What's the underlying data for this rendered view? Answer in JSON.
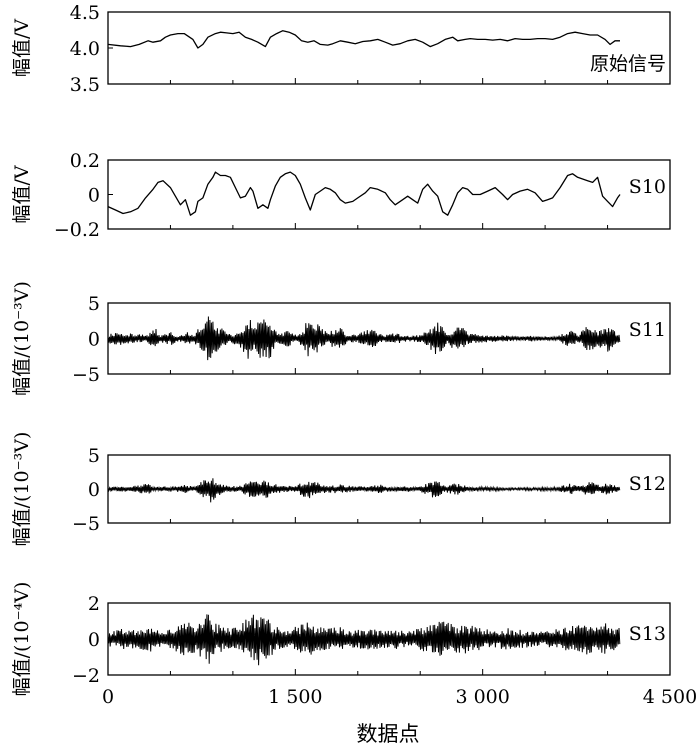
{
  "chart_data": [
    {
      "type": "line",
      "ylabel": "幅值/V",
      "label": "原始信号",
      "ylim": [
        3.5,
        4.5
      ],
      "yticks": [
        "4.5",
        "4.0",
        "3.5"
      ],
      "ytick_values": [
        4.5,
        4.0,
        3.5
      ],
      "xlim": [
        0,
        4500
      ],
      "grid": false,
      "series": [
        {
          "x": [
            0,
            100,
            180,
            250,
            320,
            360,
            420,
            460,
            500,
            560,
            610,
            680,
            720,
            760,
            800,
            860,
            900,
            950,
            1000,
            1050,
            1100,
            1150,
            1200,
            1260,
            1300,
            1350,
            1400,
            1450,
            1500,
            1550,
            1600,
            1650,
            1700,
            1760,
            1800,
            1860,
            1920,
            1980,
            2040,
            2100,
            2160,
            2220,
            2280,
            2340,
            2400,
            2460,
            2520,
            2580,
            2640,
            2700,
            2760,
            2800,
            2860,
            2900,
            2960,
            3020,
            3080,
            3140,
            3200,
            3260,
            3320,
            3380,
            3440,
            3500,
            3560,
            3620,
            3680,
            3740,
            3800,
            3860,
            3920,
            3980,
            4020,
            4060,
            4100
          ],
          "y": [
            4.05,
            4.03,
            4.02,
            4.05,
            4.1,
            4.08,
            4.1,
            4.15,
            4.18,
            4.2,
            4.2,
            4.12,
            4.0,
            4.05,
            4.15,
            4.2,
            4.22,
            4.21,
            4.2,
            4.22,
            4.15,
            4.12,
            4.08,
            4.02,
            4.15,
            4.2,
            4.24,
            4.22,
            4.18,
            4.1,
            4.08,
            4.1,
            4.05,
            4.04,
            4.06,
            4.1,
            4.08,
            4.06,
            4.09,
            4.1,
            4.12,
            4.08,
            4.04,
            4.06,
            4.1,
            4.12,
            4.08,
            4.02,
            4.06,
            4.12,
            4.15,
            4.1,
            4.12,
            4.13,
            4.12,
            4.12,
            4.11,
            4.12,
            4.1,
            4.13,
            4.12,
            4.12,
            4.13,
            4.13,
            4.12,
            4.15,
            4.2,
            4.22,
            4.2,
            4.18,
            4.18,
            4.12,
            4.05,
            4.1,
            4.1
          ]
        }
      ]
    },
    {
      "type": "line",
      "ylabel": "幅值/V",
      "label": "S10",
      "ylim": [
        -0.2,
        0.2
      ],
      "yticks": [
        "0.2",
        "0",
        "−0.2"
      ],
      "ytick_values": [
        0.2,
        0,
        -0.2
      ],
      "xlim": [
        0,
        4500
      ],
      "grid": false,
      "series": [
        {
          "x": [
            0,
            60,
            120,
            180,
            240,
            300,
            360,
            400,
            440,
            500,
            540,
            580,
            620,
            660,
            700,
            720,
            760,
            800,
            840,
            860,
            900,
            940,
            980,
            1020,
            1060,
            1100,
            1140,
            1160,
            1200,
            1240,
            1280,
            1300,
            1340,
            1380,
            1420,
            1460,
            1500,
            1540,
            1580,
            1620,
            1660,
            1700,
            1740,
            1780,
            1820,
            1860,
            1900,
            1960,
            2000,
            2060,
            2100,
            2160,
            2220,
            2260,
            2300,
            2360,
            2400,
            2440,
            2480,
            2520,
            2560,
            2600,
            2640,
            2680,
            2720,
            2760,
            2800,
            2840,
            2880,
            2920,
            2980,
            3040,
            3100,
            3160,
            3200,
            3240,
            3300,
            3360,
            3420,
            3480,
            3520,
            3560,
            3620,
            3680,
            3720,
            3760,
            3800,
            3840,
            3880,
            3920,
            3960,
            4000,
            4040,
            4080,
            4100
          ],
          "y": [
            -0.07,
            -0.09,
            -0.11,
            -0.1,
            -0.08,
            -0.02,
            0.03,
            0.07,
            0.08,
            0.04,
            -0.01,
            -0.06,
            -0.03,
            -0.12,
            -0.1,
            -0.04,
            -0.02,
            0.06,
            0.1,
            0.13,
            0.11,
            0.11,
            0.1,
            0.04,
            -0.02,
            -0.01,
            0.04,
            0.02,
            -0.08,
            -0.06,
            -0.08,
            -0.03,
            0.05,
            0.1,
            0.12,
            0.13,
            0.11,
            0.06,
            -0.02,
            -0.09,
            0.0,
            0.02,
            0.04,
            0.03,
            0.01,
            -0.03,
            -0.05,
            -0.04,
            -0.02,
            0.01,
            0.04,
            0.03,
            0.01,
            -0.03,
            -0.06,
            -0.03,
            -0.01,
            -0.03,
            -0.05,
            0.03,
            0.06,
            0.02,
            -0.01,
            -0.1,
            -0.12,
            -0.06,
            0.01,
            0.04,
            0.03,
            0.0,
            0.0,
            0.02,
            0.04,
            0.0,
            -0.03,
            0.0,
            0.02,
            0.03,
            0.01,
            -0.04,
            -0.03,
            -0.02,
            0.04,
            0.11,
            0.12,
            0.1,
            0.09,
            0.08,
            0.07,
            0.1,
            -0.01,
            -0.04,
            -0.07,
            -0.02,
            0.0
          ]
        }
      ]
    },
    {
      "type": "line",
      "ylabel": "幅值/(10⁻³V)",
      "label": "S11",
      "ylim": [
        -5,
        5
      ],
      "yticks": [
        "5",
        "0",
        "−5"
      ],
      "ytick_values": [
        5,
        0,
        -5
      ],
      "xlim": [
        0,
        4500
      ],
      "grid": false,
      "series": [
        {
          "x_end": 4100,
          "base_amplitude": 0.5,
          "envelope": [
            [
              0,
              0.6
            ],
            [
              60,
              1.0
            ],
            [
              150,
              0.8
            ],
            [
              300,
              0.5
            ],
            [
              380,
              1.5
            ],
            [
              420,
              0.5
            ],
            [
              500,
              1.0
            ],
            [
              560,
              0.4
            ],
            [
              640,
              1.0
            ],
            [
              680,
              0.4
            ],
            [
              780,
              2.8
            ],
            [
              820,
              3.5
            ],
            [
              880,
              2.0
            ],
            [
              960,
              0.6
            ],
            [
              1050,
              1.0
            ],
            [
              1120,
              3.0
            ],
            [
              1180,
              2.0
            ],
            [
              1240,
              3.4
            ],
            [
              1300,
              2.8
            ],
            [
              1360,
              0.6
            ],
            [
              1440,
              1.2
            ],
            [
              1520,
              0.4
            ],
            [
              1600,
              2.6
            ],
            [
              1680,
              2.0
            ],
            [
              1760,
              0.8
            ],
            [
              1840,
              1.8
            ],
            [
              1920,
              0.6
            ],
            [
              2000,
              0.6
            ],
            [
              2100,
              1.5
            ],
            [
              2200,
              0.5
            ],
            [
              2300,
              0.8
            ],
            [
              2400,
              0.4
            ],
            [
              2500,
              0.5
            ],
            [
              2580,
              1.6
            ],
            [
              2640,
              2.6
            ],
            [
              2720,
              0.5
            ],
            [
              2800,
              2.5
            ],
            [
              2880,
              0.8
            ],
            [
              2960,
              0.6
            ],
            [
              3080,
              0.5
            ],
            [
              3200,
              0.4
            ],
            [
              3300,
              0.3
            ],
            [
              3400,
              0.4
            ],
            [
              3500,
              0.3
            ],
            [
              3600,
              0.3
            ],
            [
              3700,
              1.4
            ],
            [
              3760,
              0.5
            ],
            [
              3850,
              2.0
            ],
            [
              3920,
              1.0
            ],
            [
              4000,
              2.0
            ],
            [
              4060,
              1.0
            ],
            [
              4100,
              0.6
            ]
          ]
        }
      ]
    },
    {
      "type": "line",
      "ylabel": "幅值/(10⁻³V)",
      "label": "S12",
      "ylim": [
        -5,
        5
      ],
      "yticks": [
        "5",
        "0",
        "−5"
      ],
      "ytick_values": [
        5,
        0,
        -5
      ],
      "xlim": [
        0,
        4500
      ],
      "grid": false,
      "series": [
        {
          "x_end": 4100,
          "base_amplitude": 0.25,
          "envelope": [
            [
              0,
              0.3
            ],
            [
              150,
              0.4
            ],
            [
              320,
              0.8
            ],
            [
              360,
              0.3
            ],
            [
              500,
              0.4
            ],
            [
              620,
              0.6
            ],
            [
              700,
              0.3
            ],
            [
              780,
              1.6
            ],
            [
              820,
              2.0
            ],
            [
              880,
              1.0
            ],
            [
              960,
              0.4
            ],
            [
              1060,
              0.5
            ],
            [
              1140,
              1.4
            ],
            [
              1200,
              1.0
            ],
            [
              1260,
              1.6
            ],
            [
              1320,
              0.8
            ],
            [
              1400,
              0.5
            ],
            [
              1500,
              0.4
            ],
            [
              1580,
              1.5
            ],
            [
              1660,
              1.2
            ],
            [
              1760,
              0.5
            ],
            [
              1860,
              0.7
            ],
            [
              1960,
              0.4
            ],
            [
              2080,
              0.4
            ],
            [
              2180,
              0.7
            ],
            [
              2280,
              0.3
            ],
            [
              2400,
              0.4
            ],
            [
              2500,
              0.4
            ],
            [
              2620,
              1.4
            ],
            [
              2700,
              0.5
            ],
            [
              2800,
              0.9
            ],
            [
              2900,
              0.3
            ],
            [
              3050,
              0.3
            ],
            [
              3200,
              0.2
            ],
            [
              3400,
              0.2
            ],
            [
              3600,
              0.3
            ],
            [
              3700,
              0.8
            ],
            [
              3780,
              0.4
            ],
            [
              3860,
              1.2
            ],
            [
              3940,
              0.6
            ],
            [
              4000,
              1.0
            ],
            [
              4060,
              0.5
            ],
            [
              4100,
              0.3
            ]
          ]
        }
      ]
    },
    {
      "type": "line",
      "ylabel": "幅值/(10⁻⁴V)",
      "label": "S13",
      "ylim": [
        -2,
        2
      ],
      "yticks": [
        "2",
        "0",
        "−2"
      ],
      "ytick_values": [
        2,
        0,
        -2
      ],
      "xlim": [
        0,
        4500
      ],
      "grid": false,
      "series": [
        {
          "x_end": 4100,
          "base_amplitude": 0.4,
          "envelope": [
            [
              0,
              0.4
            ],
            [
              100,
              0.6
            ],
            [
              220,
              0.5
            ],
            [
              340,
              0.7
            ],
            [
              450,
              0.5
            ],
            [
              560,
              0.8
            ],
            [
              640,
              1.0
            ],
            [
              720,
              0.8
            ],
            [
              800,
              1.6
            ],
            [
              860,
              0.9
            ],
            [
              960,
              0.6
            ],
            [
              1060,
              0.8
            ],
            [
              1120,
              1.2
            ],
            [
              1200,
              1.5
            ],
            [
              1260,
              1.3
            ],
            [
              1340,
              0.7
            ],
            [
              1440,
              0.5
            ],
            [
              1600,
              1.0
            ],
            [
              1660,
              0.8
            ],
            [
              1760,
              0.6
            ],
            [
              1860,
              0.7
            ],
            [
              1960,
              0.5
            ],
            [
              2080,
              0.6
            ],
            [
              2200,
              0.5
            ],
            [
              2300,
              0.6
            ],
            [
              2400,
              0.4
            ],
            [
              2500,
              0.6
            ],
            [
              2600,
              0.9
            ],
            [
              2680,
              1.1
            ],
            [
              2760,
              0.8
            ],
            [
              2880,
              0.8
            ],
            [
              2980,
              0.6
            ],
            [
              3100,
              0.5
            ],
            [
              3200,
              0.6
            ],
            [
              3320,
              0.5
            ],
            [
              3440,
              0.4
            ],
            [
              3560,
              0.5
            ],
            [
              3680,
              0.7
            ],
            [
              3760,
              0.9
            ],
            [
              3850,
              1.1
            ],
            [
              3920,
              0.8
            ],
            [
              4000,
              0.9
            ],
            [
              4100,
              0.6
            ]
          ]
        }
      ]
    }
  ],
  "xaxis": {
    "label": "数据点",
    "ticks": [
      "0",
      "1 500",
      "3 000",
      "4 500"
    ],
    "tick_values": [
      0,
      1500,
      3000,
      4500
    ],
    "minor_step": 500
  }
}
